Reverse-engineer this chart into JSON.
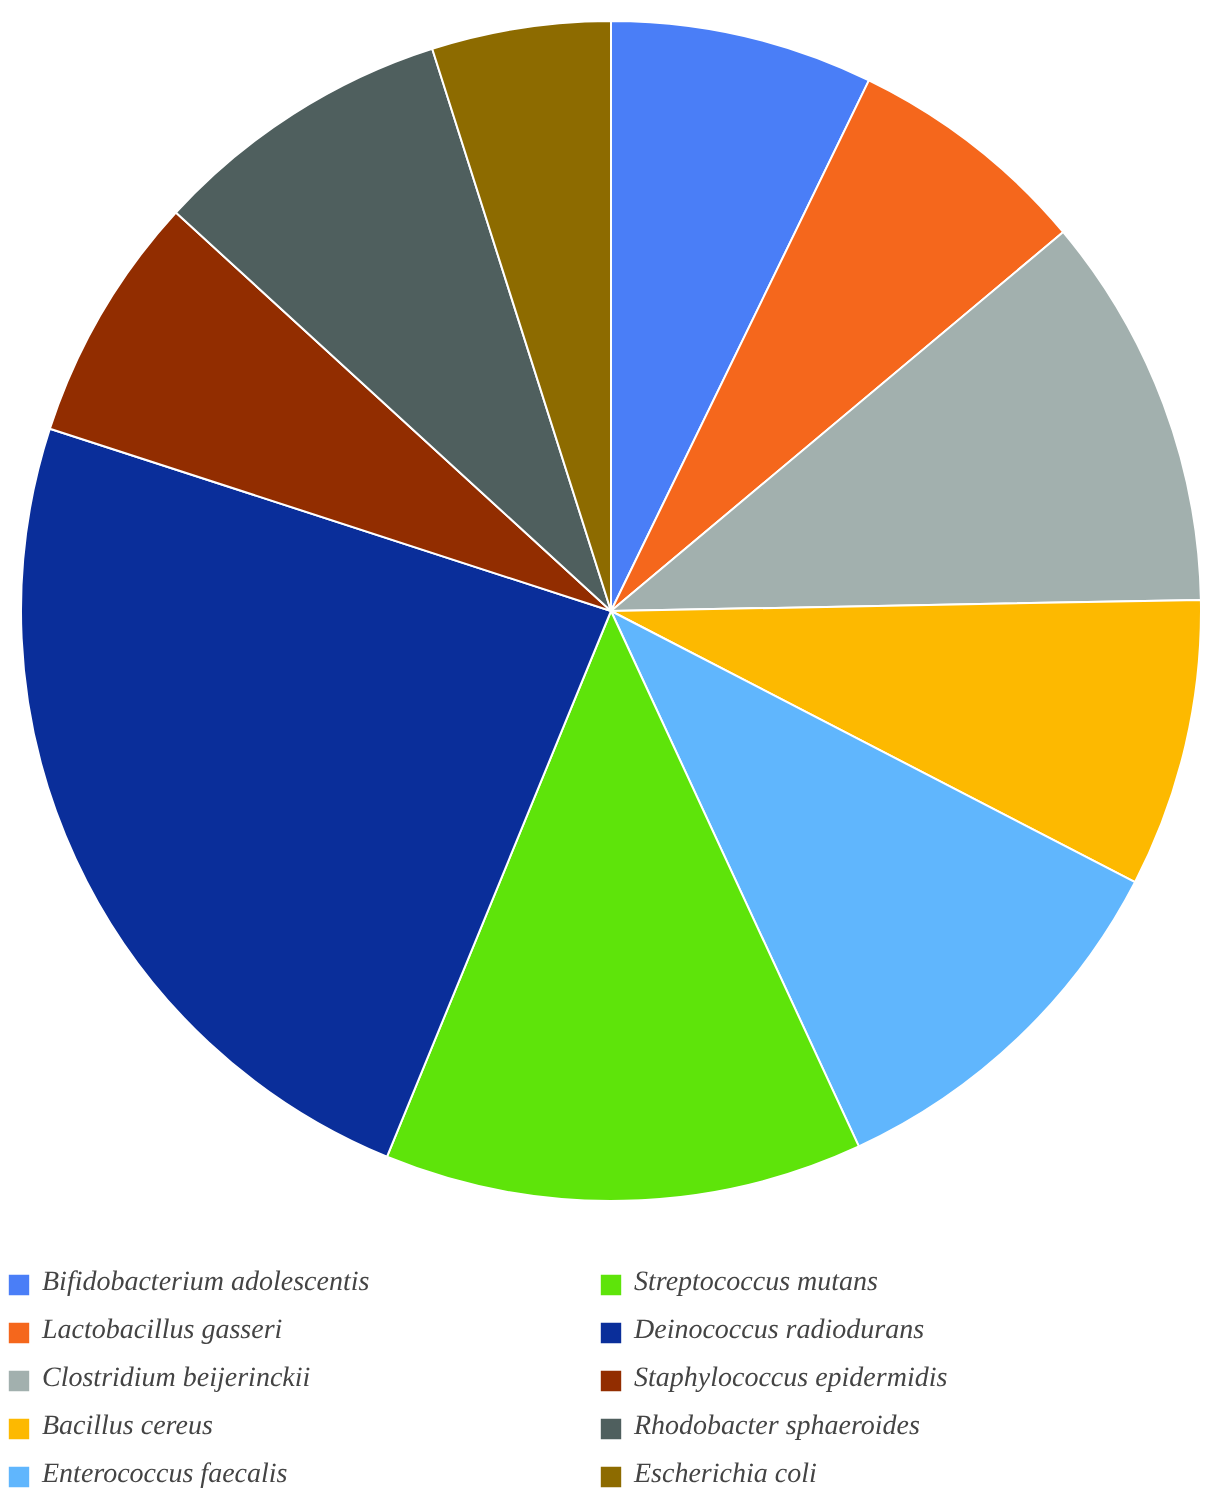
{
  "chart_data": {
    "type": "pie",
    "legend": "bottom",
    "categories": [
      "Bifidobacterium adolescentis",
      "Lactobacillus gasseri",
      "Clostridium beijerinckii",
      "Bacillus cereus",
      "Enterococcus faecalis",
      "Streptococcus mutans",
      "Deinococcus radiodurans",
      "Staphylococcus epidermidis",
      "Rhodobacter sphaeroides",
      "Escherichia coli"
    ],
    "values": [
      7.2,
      6.7,
      10.8,
      7.9,
      10.5,
      13.1,
      23.8,
      6.8,
      8.3,
      4.9
    ],
    "colors": [
      "#4a7ef7",
      "#f5671c",
      "#a2b0ae",
      "#fdb900",
      "#60b6fd",
      "#5ee40a",
      "#0a2e9a",
      "#922d00",
      "#4f5f5e",
      "#8d6b00"
    ]
  }
}
